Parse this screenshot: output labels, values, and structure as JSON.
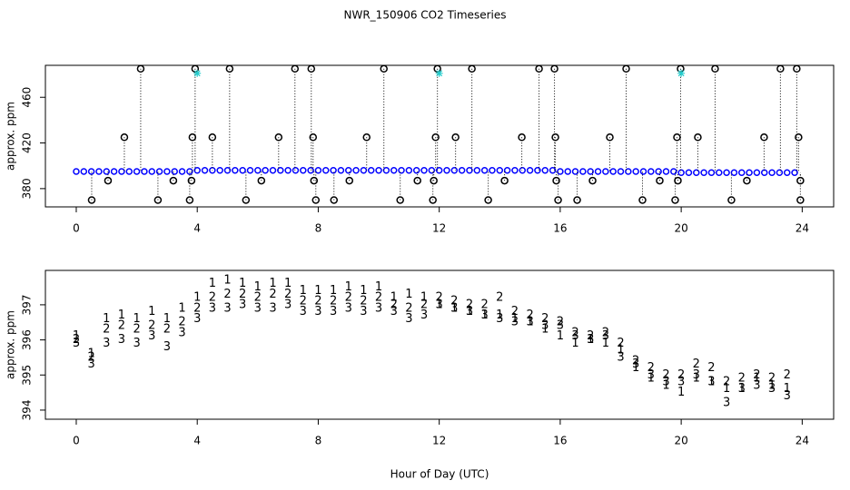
{
  "chart_data": [
    {
      "type": "scatter",
      "title": "NWR_150906  CO2 Timeseries",
      "y_label": "approx. ppm",
      "xlim": [
        -1.02,
        25.04
      ],
      "ylim": [
        364,
        488
      ],
      "xticks": [
        0,
        4,
        8,
        12,
        16,
        20,
        24
      ],
      "yticks": [
        380,
        420,
        460
      ],
      "series": [
        {
          "color": "#0000ff",
          "marker": "dot",
          "x": [
            0,
            0.25,
            0.5,
            0.75,
            1,
            1.25,
            1.5,
            1.75,
            2,
            2.25,
            2.5,
            2.75,
            3,
            3.25,
            3.5,
            3.75,
            4,
            4.25,
            4.5,
            4.75,
            5,
            5.25,
            5.5,
            5.75,
            6,
            6.25,
            6.5,
            6.75,
            7,
            7.25,
            7.5,
            7.75,
            8,
            8.25,
            8.5,
            8.75,
            9,
            9.25,
            9.5,
            9.75,
            10,
            10.25,
            10.5,
            10.75,
            11,
            11.25,
            11.5,
            11.75,
            12,
            12.25,
            12.5,
            12.75,
            13,
            13.25,
            13.5,
            13.75,
            14,
            14.25,
            14.5,
            14.75,
            15,
            15.25,
            15.5,
            15.75,
            16,
            16.25,
            16.5,
            16.75,
            17,
            17.25,
            17.5,
            17.75,
            18,
            18.25,
            18.5,
            18.75,
            19,
            19.25,
            19.5,
            19.75,
            20,
            20.25,
            20.5,
            20.75,
            21,
            21.25,
            21.5,
            21.75,
            22,
            22.25,
            22.5,
            22.75,
            23,
            23.25,
            23.5,
            23.75
          ],
          "values": [
            395,
            395,
            395,
            395,
            395,
            395,
            395,
            395,
            395,
            395,
            395,
            395,
            395,
            395,
            395,
            395,
            396,
            396,
            396,
            396,
            396,
            396,
            396,
            396,
            396,
            396,
            396,
            396,
            396,
            396,
            396,
            396,
            396,
            396,
            396,
            396,
            396,
            396,
            396,
            396,
            396,
            396,
            396,
            396,
            396,
            396,
            396,
            396,
            396,
            396,
            396,
            396,
            396,
            396,
            396,
            396,
            396,
            396,
            396,
            396,
            396,
            396,
            396,
            396,
            395,
            395,
            395,
            395,
            395,
            395,
            395,
            395,
            395,
            395,
            395,
            395,
            395,
            395,
            395,
            395,
            394,
            394,
            394,
            394,
            394,
            394,
            394,
            394,
            394,
            394,
            394,
            394,
            394,
            394,
            394,
            394
          ]
        },
        {
          "color": "#000000",
          "marker": "circle",
          "drop_lines": true,
          "x": [
            2.13,
            3.93,
            5.07,
            7.23,
            7.77,
            10.17,
            11.94,
            13.08,
            15.3,
            15.81,
            18.18,
            19.98,
            21.12,
            23.28,
            23.82,
            1.59,
            3.84,
            4.5,
            6.69,
            7.83,
            9.6,
            11.88,
            12.54,
            14.73,
            15.84,
            17.64,
            19.86,
            20.55,
            22.74,
            23.88,
            1.05,
            3.21,
            3.81,
            6.12,
            7.86,
            9.03,
            11.28,
            11.82,
            14.16,
            15.87,
            17.07,
            19.29,
            19.89,
            22.17,
            23.94,
            0.51,
            2.7,
            3.75,
            5.61,
            7.92,
            8.52,
            10.71,
            11.79,
            13.62,
            15.93,
            16.56,
            18.72,
            19.8,
            21.66,
            23.94
          ],
          "values": [
            485,
            485,
            485,
            485,
            485,
            485,
            485,
            485,
            485,
            485,
            485,
            485,
            485,
            485,
            485,
            425,
            425,
            425,
            425,
            425,
            425,
            425,
            425,
            425,
            425,
            425,
            425,
            425,
            425,
            425,
            387,
            387,
            387,
            387,
            387,
            387,
            387,
            387,
            387,
            387,
            387,
            387,
            387,
            387,
            387,
            370,
            370,
            370,
            370,
            370,
            370,
            370,
            370,
            370,
            370,
            370,
            370,
            370,
            370,
            370
          ]
        },
        {
          "color": "#22cccc",
          "marker": "star",
          "x": [
            4.0,
            12.0,
            20.0
          ],
          "values": [
            481,
            481,
            481
          ]
        }
      ]
    },
    {
      "type": "text-marker",
      "y_label": "approx. ppm",
      "x_label": "Hour of Day (UTC)",
      "xlim": [
        -1.02,
        25.04
      ],
      "ylim": [
        393.74,
        397.98
      ],
      "xticks": [
        0,
        4,
        8,
        12,
        16,
        20,
        24
      ],
      "yticks": [
        394,
        395,
        396,
        397
      ],
      "x": [
        0,
        0.5,
        1,
        1.5,
        2,
        2.5,
        3,
        3.5,
        4,
        4.5,
        5,
        5.5,
        6,
        6.5,
        7,
        7.5,
        8,
        8.5,
        9,
        9.5,
        10,
        10.5,
        11,
        11.5,
        12,
        12.5,
        13,
        13.5,
        14,
        14.5,
        15,
        15.5,
        16,
        16.5,
        17,
        17.5,
        18,
        18.5,
        19,
        19.5,
        20,
        20.5,
        21,
        21.5,
        22,
        22.5,
        23,
        23.5
      ],
      "series": [
        {
          "name": "1",
          "color": "#ee0000",
          "values": [
            396.1,
            395.6,
            396.6,
            396.7,
            396.6,
            396.8,
            396.6,
            396.9,
            397.2,
            397.6,
            397.7,
            397.6,
            397.5,
            397.6,
            397.6,
            397.4,
            397.4,
            397.4,
            397.5,
            397.4,
            397.5,
            397.2,
            397.3,
            397.2,
            397.0,
            396.9,
            396.8,
            396.7,
            396.7,
            396.6,
            396.5,
            396.3,
            396.1,
            395.9,
            396.0,
            395.9,
            395.7,
            395.2,
            394.9,
            394.7,
            394.5,
            394.9,
            394.8,
            394.6,
            394.6,
            394.9,
            394.7,
            394.6
          ]
        },
        {
          "name": "2",
          "color": "#22bb22",
          "values": [
            396.0,
            395.5,
            396.3,
            396.4,
            396.3,
            396.4,
            396.3,
            396.5,
            396.9,
            397.2,
            397.3,
            397.3,
            397.2,
            397.3,
            397.3,
            397.1,
            397.1,
            397.1,
            397.2,
            397.1,
            397.2,
            397.0,
            396.9,
            397.0,
            397.2,
            397.1,
            397.0,
            397.0,
            397.2,
            396.8,
            396.7,
            396.6,
            396.5,
            396.2,
            396.1,
            396.2,
            395.9,
            395.4,
            395.2,
            395.0,
            395.0,
            395.3,
            395.2,
            394.8,
            394.9,
            395.0,
            394.9,
            395.0
          ]
        },
        {
          "name": "3",
          "color": "#0000dd",
          "values": [
            395.9,
            395.3,
            395.9,
            396.0,
            395.9,
            396.1,
            395.8,
            396.2,
            396.6,
            396.9,
            396.9,
            397.0,
            396.9,
            396.9,
            397.0,
            396.8,
            396.8,
            396.8,
            396.9,
            396.8,
            396.9,
            396.8,
            396.6,
            396.7,
            397.0,
            396.9,
            396.8,
            396.7,
            396.6,
            396.5,
            396.5,
            396.4,
            396.4,
            396.1,
            396.0,
            396.1,
            395.5,
            395.3,
            395.0,
            394.8,
            394.8,
            395.0,
            394.8,
            394.2,
            394.6,
            394.7,
            394.6,
            394.4
          ]
        }
      ]
    }
  ]
}
